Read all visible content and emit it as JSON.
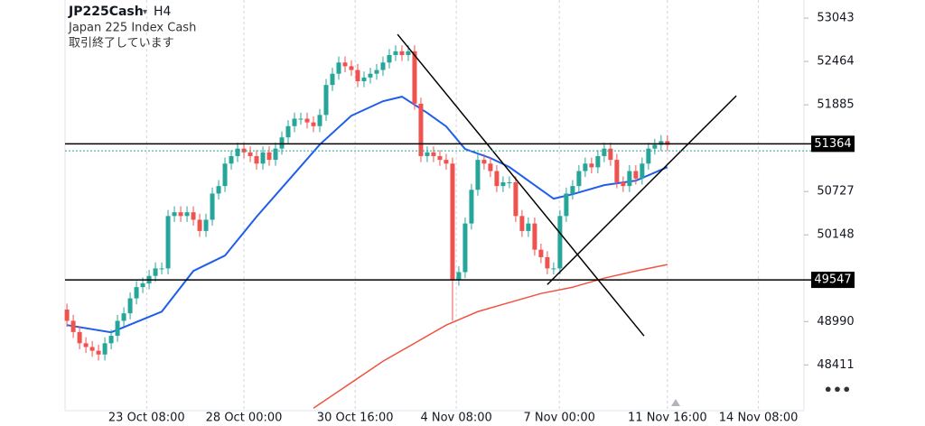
{
  "chart_data": {
    "type": "candlestick",
    "symbol": "JP225Cash",
    "interval": "H4",
    "subtitle": "Japan 225 Index Cash",
    "status": "取引終了しています",
    "up_color": "#26a69a",
    "down_color": "#ef5350",
    "open": [
      49150,
      49000,
      48850,
      48700,
      48650,
      48600,
      48550,
      48700,
      48800,
      49000,
      49100,
      49300,
      49450,
      49500,
      49600,
      49700,
      49700,
      50400,
      50450,
      50400,
      50450,
      50350,
      50200,
      50350,
      50700,
      50800,
      51100,
      51200,
      51300,
      51250,
      51200,
      51100,
      51250,
      51150,
      51300,
      51450,
      51600,
      51700,
      51700,
      51650,
      51600,
      51750,
      52150,
      52300,
      52450,
      52400,
      52350,
      52200,
      52250,
      52300,
      52350,
      52450,
      52550,
      52600,
      52550,
      52600,
      51900,
      51200,
      51250,
      51200,
      51150,
      51100,
      49550,
      49650,
      50300,
      50750,
      51150,
      51100,
      51000,
      50800,
      50850,
      50850,
      50400,
      50200,
      50300,
      49950,
      49850,
      49700,
      49700,
      50400,
      50700,
      50800,
      51000,
      51100,
      51050,
      51200,
      51300,
      51150,
      50850,
      50800,
      51000,
      50900,
      51100,
      51300,
      51350,
      51400
    ],
    "high": [
      49230,
      49080,
      48930,
      48780,
      48730,
      48680,
      48780,
      48880,
      49080,
      49180,
      49380,
      49530,
      49580,
      49680,
      49780,
      49780,
      50480,
      50530,
      50530,
      50530,
      50530,
      50430,
      50430,
      50780,
      50880,
      51180,
      51280,
      51380,
      51380,
      51330,
      51280,
      51330,
      51330,
      51380,
      51530,
      51680,
      51780,
      51780,
      51780,
      51730,
      51830,
      52230,
      52380,
      52530,
      52530,
      52480,
      52430,
      52330,
      52380,
      52430,
      52530,
      52630,
      52680,
      52680,
      52680,
      52680,
      51980,
      51330,
      51330,
      51280,
      51230,
      51180,
      49730,
      50380,
      50830,
      51230,
      51230,
      51180,
      51080,
      50930,
      50930,
      50930,
      50480,
      50380,
      50380,
      50030,
      49930,
      49780,
      50480,
      50780,
      50880,
      51080,
      51180,
      51180,
      51280,
      51380,
      51380,
      51230,
      50930,
      51080,
      51080,
      51180,
      51380,
      51430,
      51480,
      51480
    ],
    "low": [
      48920,
      48770,
      48620,
      48570,
      48520,
      48470,
      48470,
      48620,
      48720,
      48920,
      49020,
      49220,
      49370,
      49420,
      49520,
      49620,
      49620,
      50320,
      50320,
      50320,
      50270,
      50120,
      50120,
      50270,
      50620,
      50720,
      51020,
      51120,
      51170,
      51120,
      51020,
      51020,
      51070,
      51070,
      51220,
      51370,
      51520,
      51620,
      51570,
      51520,
      51520,
      51670,
      52070,
      52220,
      52320,
      52270,
      52120,
      52120,
      52170,
      52220,
      52270,
      52370,
      52470,
      52470,
      52470,
      51820,
      51120,
      51120,
      51120,
      51070,
      51020,
      49000,
      49470,
      49570,
      50220,
      50670,
      51020,
      50920,
      50720,
      50720,
      50770,
      50320,
      50120,
      50120,
      49870,
      49770,
      49620,
      49620,
      49620,
      50320,
      50620,
      50720,
      50920,
      50970,
      50970,
      51120,
      51070,
      50770,
      50720,
      50720,
      50820,
      50820,
      51020,
      51220,
      51270,
      51270
    ],
    "close": [
      49000,
      48850,
      48700,
      48650,
      48600,
      48550,
      48700,
      48800,
      49000,
      49100,
      49300,
      49450,
      49500,
      49600,
      49700,
      49700,
      50400,
      50450,
      50400,
      50450,
      50350,
      50200,
      50350,
      50700,
      50800,
      51100,
      51200,
      51300,
      51250,
      51200,
      51100,
      51250,
      51150,
      51300,
      51450,
      51600,
      51700,
      51700,
      51650,
      51600,
      51750,
      52150,
      52300,
      52450,
      52400,
      52350,
      52200,
      52250,
      52300,
      52350,
      52450,
      52550,
      52600,
      52550,
      52600,
      51900,
      51200,
      51250,
      51200,
      51150,
      51100,
      49550,
      49650,
      50300,
      50750,
      51150,
      51100,
      51000,
      50800,
      50850,
      50850,
      50400,
      50200,
      50300,
      49950,
      49850,
      49700,
      49700,
      50400,
      50700,
      50800,
      51000,
      51100,
      51050,
      51200,
      51300,
      51150,
      50850,
      50800,
      51000,
      50900,
      51100,
      51300,
      51350,
      51400,
      51350
    ],
    "ma_lines": [
      {
        "color": "#1e5eea",
        "x": [
          0,
          7,
          15,
          20,
          25,
          30,
          35,
          40,
          45,
          50,
          53,
          57,
          60,
          63,
          67,
          70,
          74,
          77,
          80,
          85,
          90,
          95
        ],
        "values": [
          48943,
          48846,
          49123,
          49666,
          49871,
          50390,
          50872,
          51354,
          51740,
          51933,
          51994,
          51777,
          51596,
          51294,
          51174,
          51053,
          50812,
          50631,
          50691,
          50812,
          50872,
          51053
        ]
      },
      {
        "color": "#f0533f",
        "x": [
          39,
          50,
          55,
          60,
          65,
          70,
          75,
          80,
          85,
          90,
          95
        ],
        "values": [
          47833,
          48460,
          48701,
          48943,
          49123,
          49244,
          49365,
          49449,
          49570,
          49666,
          49751
        ]
      }
    ],
    "trend_lines": [
      {
        "color": "#000000",
        "x": [
          52.3,
          91.3
        ],
        "values": [
          52826,
          48798
        ]
      },
      {
        "color": "#000000",
        "x": [
          76,
          105.9
        ],
        "values": [
          49485,
          52006
        ]
      }
    ],
    "levels": [
      51364,
      49547
    ],
    "price_line": 51270,
    "price_line_color": "#26a69a",
    "ylim": [
      47800,
      53285
    ],
    "yticks": [
      48411,
      48990,
      50148,
      50727,
      51885,
      52464,
      53043
    ],
    "xlim": [
      -0.3,
      116.6
    ],
    "xticks": [
      {
        "value": 12.6,
        "label": "23 Oct 08:00"
      },
      {
        "value": 28,
        "label": "28 Oct 00:00"
      },
      {
        "value": 45.6,
        "label": "30 Oct 16:00"
      },
      {
        "value": 61.6,
        "label": "4 Nov 08:00"
      },
      {
        "value": 77.9,
        "label": "7 Nov 00:00"
      },
      {
        "value": 95,
        "label": "11 Nov 16:00"
      },
      {
        "value": 109.4,
        "label": "14 Nov 08:00"
      }
    ]
  }
}
